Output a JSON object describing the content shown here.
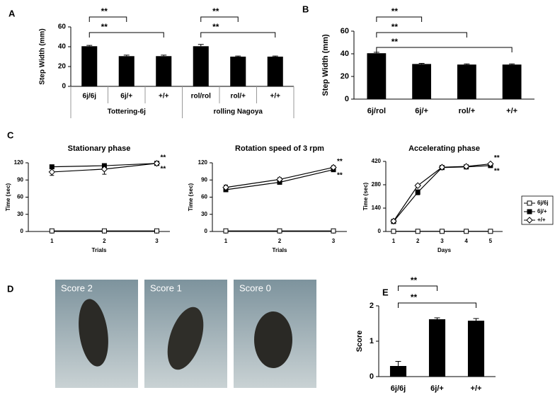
{
  "chart_data": [
    {
      "type": "bar",
      "panel": "A",
      "ylabel": "Step Width (mm)",
      "categories": [
        "6j/6j",
        "6j/+",
        "+/+",
        "rol/rol",
        "rol/+",
        "+/+"
      ],
      "group_labels": [
        "Tottering-6j",
        "rolling Nagoya"
      ],
      "values": [
        40.5,
        30.5,
        30.5,
        40.5,
        30,
        30
      ],
      "errors": [
        0.8,
        1,
        1,
        1.8,
        0.6,
        0.6
      ],
      "color": "#000000",
      "ylim": [
        0,
        60
      ],
      "yticks": [
        0,
        20,
        40,
        60
      ],
      "significance": [
        {
          "pair": [
            0,
            1
          ],
          "label": "**"
        },
        {
          "pair": [
            0,
            2
          ],
          "label": "**"
        },
        {
          "pair": [
            3,
            4
          ],
          "label": "**"
        },
        {
          "pair": [
            3,
            5
          ],
          "label": "**"
        }
      ]
    },
    {
      "type": "bar",
      "panel": "B",
      "ylabel": "Step Width (mm)",
      "categories": [
        "6j/rol",
        "6j/+",
        "rol/+",
        "+/+"
      ],
      "values": [
        40.5,
        31,
        30.5,
        30.5
      ],
      "errors": [
        0.8,
        0.6,
        0.6,
        0.6
      ],
      "color": "#000000",
      "ylim": [
        0,
        60
      ],
      "yticks": [
        0,
        20,
        40,
        60
      ],
      "significance": [
        {
          "pair": [
            0,
            1
          ],
          "label": "**"
        },
        {
          "pair": [
            0,
            2
          ],
          "label": "**"
        },
        {
          "pair": [
            0,
            3
          ],
          "label": "**"
        }
      ]
    },
    {
      "type": "line",
      "panel": "C",
      "title": "Stationary phase",
      "xlabel": "Trials",
      "ylabel": "Time (sec)",
      "x": [
        1,
        2,
        3
      ],
      "xlim": [
        0.55,
        3.25
      ],
      "xticks": [
        1,
        2,
        3
      ],
      "ylim": [
        0,
        120
      ],
      "yticks": [
        0,
        30,
        60,
        90,
        120
      ],
      "legend": false,
      "series": [
        {
          "marker": "square-open",
          "color": "#000000",
          "values": [
            1,
            1,
            1
          ]
        },
        {
          "marker": "square",
          "color": "#000000",
          "values": [
            113,
            115,
            119
          ],
          "errors": [
            2,
            2,
            1
          ],
          "end_label": "**"
        },
        {
          "marker": "diamond-open",
          "color": "#000000",
          "values": [
            104,
            109,
            119
          ],
          "errors": [
            6,
            9,
            1
          ],
          "end_label": "**"
        }
      ]
    },
    {
      "type": "line",
      "title": "Rotation speed of 3 rpm",
      "xlabel": "Trials",
      "ylabel": "Time (sec)",
      "x": [
        1,
        2,
        3
      ],
      "xlim": [
        0.75,
        3.25
      ],
      "xticks": [
        1,
        2,
        3
      ],
      "ylim": [
        0,
        120
      ],
      "yticks": [
        0,
        30,
        60,
        90,
        120
      ],
      "legend": false,
      "series": [
        {
          "marker": "square-open",
          "color": "#000000",
          "values": [
            1,
            1,
            1
          ]
        },
        {
          "marker": "square",
          "color": "#000000",
          "values": [
            73,
            86,
            108
          ],
          "errors": [
            3,
            3,
            3
          ],
          "end_label": "**"
        },
        {
          "marker": "diamond-open",
          "color": "#000000",
          "values": [
            77,
            91,
            112
          ],
          "errors": [
            4,
            3,
            3
          ],
          "end_label": "**"
        }
      ]
    },
    {
      "type": "line",
      "title": "Accelerating phase",
      "xlabel": "Days",
      "ylabel": "Time (sec)",
      "x": [
        1,
        2,
        3,
        4,
        5
      ],
      "xlim": [
        0.68,
        5.5
      ],
      "xticks": [
        1,
        2,
        3,
        4,
        5
      ],
      "ylim": [
        0,
        420
      ],
      "yticks": [
        0,
        140,
        280,
        420
      ],
      "legend": "right",
      "series": [
        {
          "name": "6j/6j",
          "marker": "square-open",
          "color": "#000000",
          "values": [
            1,
            1,
            1,
            1,
            1
          ]
        },
        {
          "name": "6j/+",
          "marker": "square",
          "color": "#000000",
          "values": [
            60,
            235,
            383,
            387,
            395
          ],
          "errors": [
            5,
            15,
            5,
            5,
            5
          ],
          "end_label": "**"
        },
        {
          "name": "+/+",
          "marker": "diamond-open",
          "color": "#000000",
          "values": [
            62,
            275,
            385,
            390,
            405
          ],
          "errors": [
            5,
            8,
            5,
            5,
            5
          ],
          "end_label": "**"
        }
      ]
    },
    {
      "type": "bar",
      "panel": "E",
      "ylabel": "Score",
      "categories": [
        "6j/6j",
        "6j/+",
        "+/+"
      ],
      "values": [
        0.3,
        1.62,
        1.58
      ],
      "errors": [
        0.13,
        0.04,
        0.06
      ],
      "color": "#000000",
      "ylim": [
        0,
        2
      ],
      "yticks": [
        0,
        1,
        2
      ],
      "significance": [
        {
          "pair": [
            0,
            1
          ],
          "label": "**"
        },
        {
          "pair": [
            0,
            2
          ],
          "label": "**"
        }
      ]
    }
  ],
  "photos": {
    "panel": "D",
    "labels": [
      "Score 2",
      "Score 1",
      "Score 0"
    ]
  }
}
